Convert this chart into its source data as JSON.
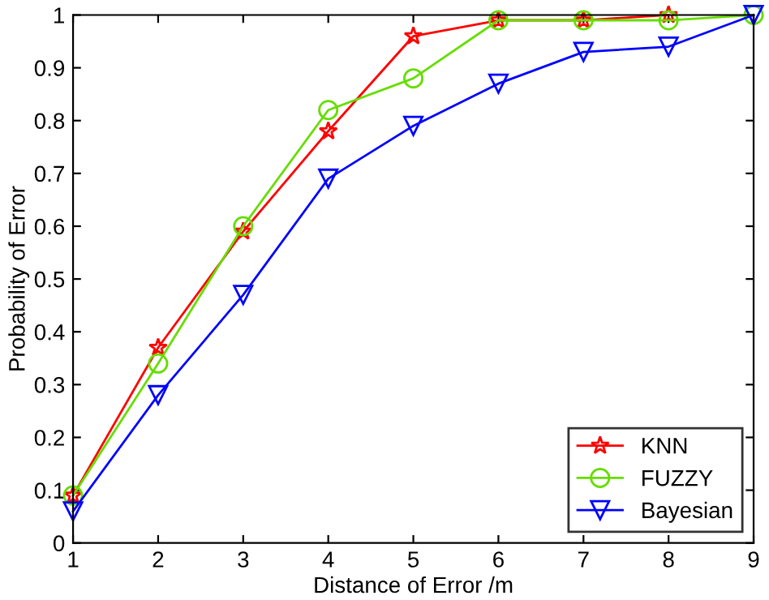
{
  "chart_data": {
    "type": "line",
    "xlabel": "Distance of Error /m",
    "ylabel": "Probability of Error",
    "x": [
      1,
      2,
      3,
      4,
      5,
      6,
      7,
      8,
      9
    ],
    "series": [
      {
        "name": "KNN",
        "color": "#ff0000",
        "marker": "star",
        "values": [
          0.09,
          0.37,
          0.59,
          0.78,
          0.96,
          0.99,
          0.99,
          1.0,
          null
        ]
      },
      {
        "name": "FUZZY",
        "color": "#66dd00",
        "marker": "circle",
        "values": [
          0.09,
          0.34,
          0.6,
          0.82,
          0.88,
          0.99,
          0.99,
          0.99,
          1.0
        ]
      },
      {
        "name": "Bayesian",
        "color": "#0000ff",
        "marker": "triangle",
        "values": [
          0.06,
          0.28,
          0.47,
          0.69,
          0.79,
          0.87,
          0.93,
          0.94,
          1.0
        ]
      }
    ],
    "xlim": [
      1,
      9
    ],
    "xticks": [
      1,
      2,
      3,
      4,
      5,
      6,
      7,
      8,
      9
    ],
    "ylim": [
      0,
      1
    ],
    "yticks": [
      0,
      0.1,
      0.2,
      0.3,
      0.4,
      0.5,
      0.6,
      0.7,
      0.8,
      0.9,
      1
    ],
    "grid": false,
    "legend": "bottom right",
    "line_style": "solid"
  }
}
